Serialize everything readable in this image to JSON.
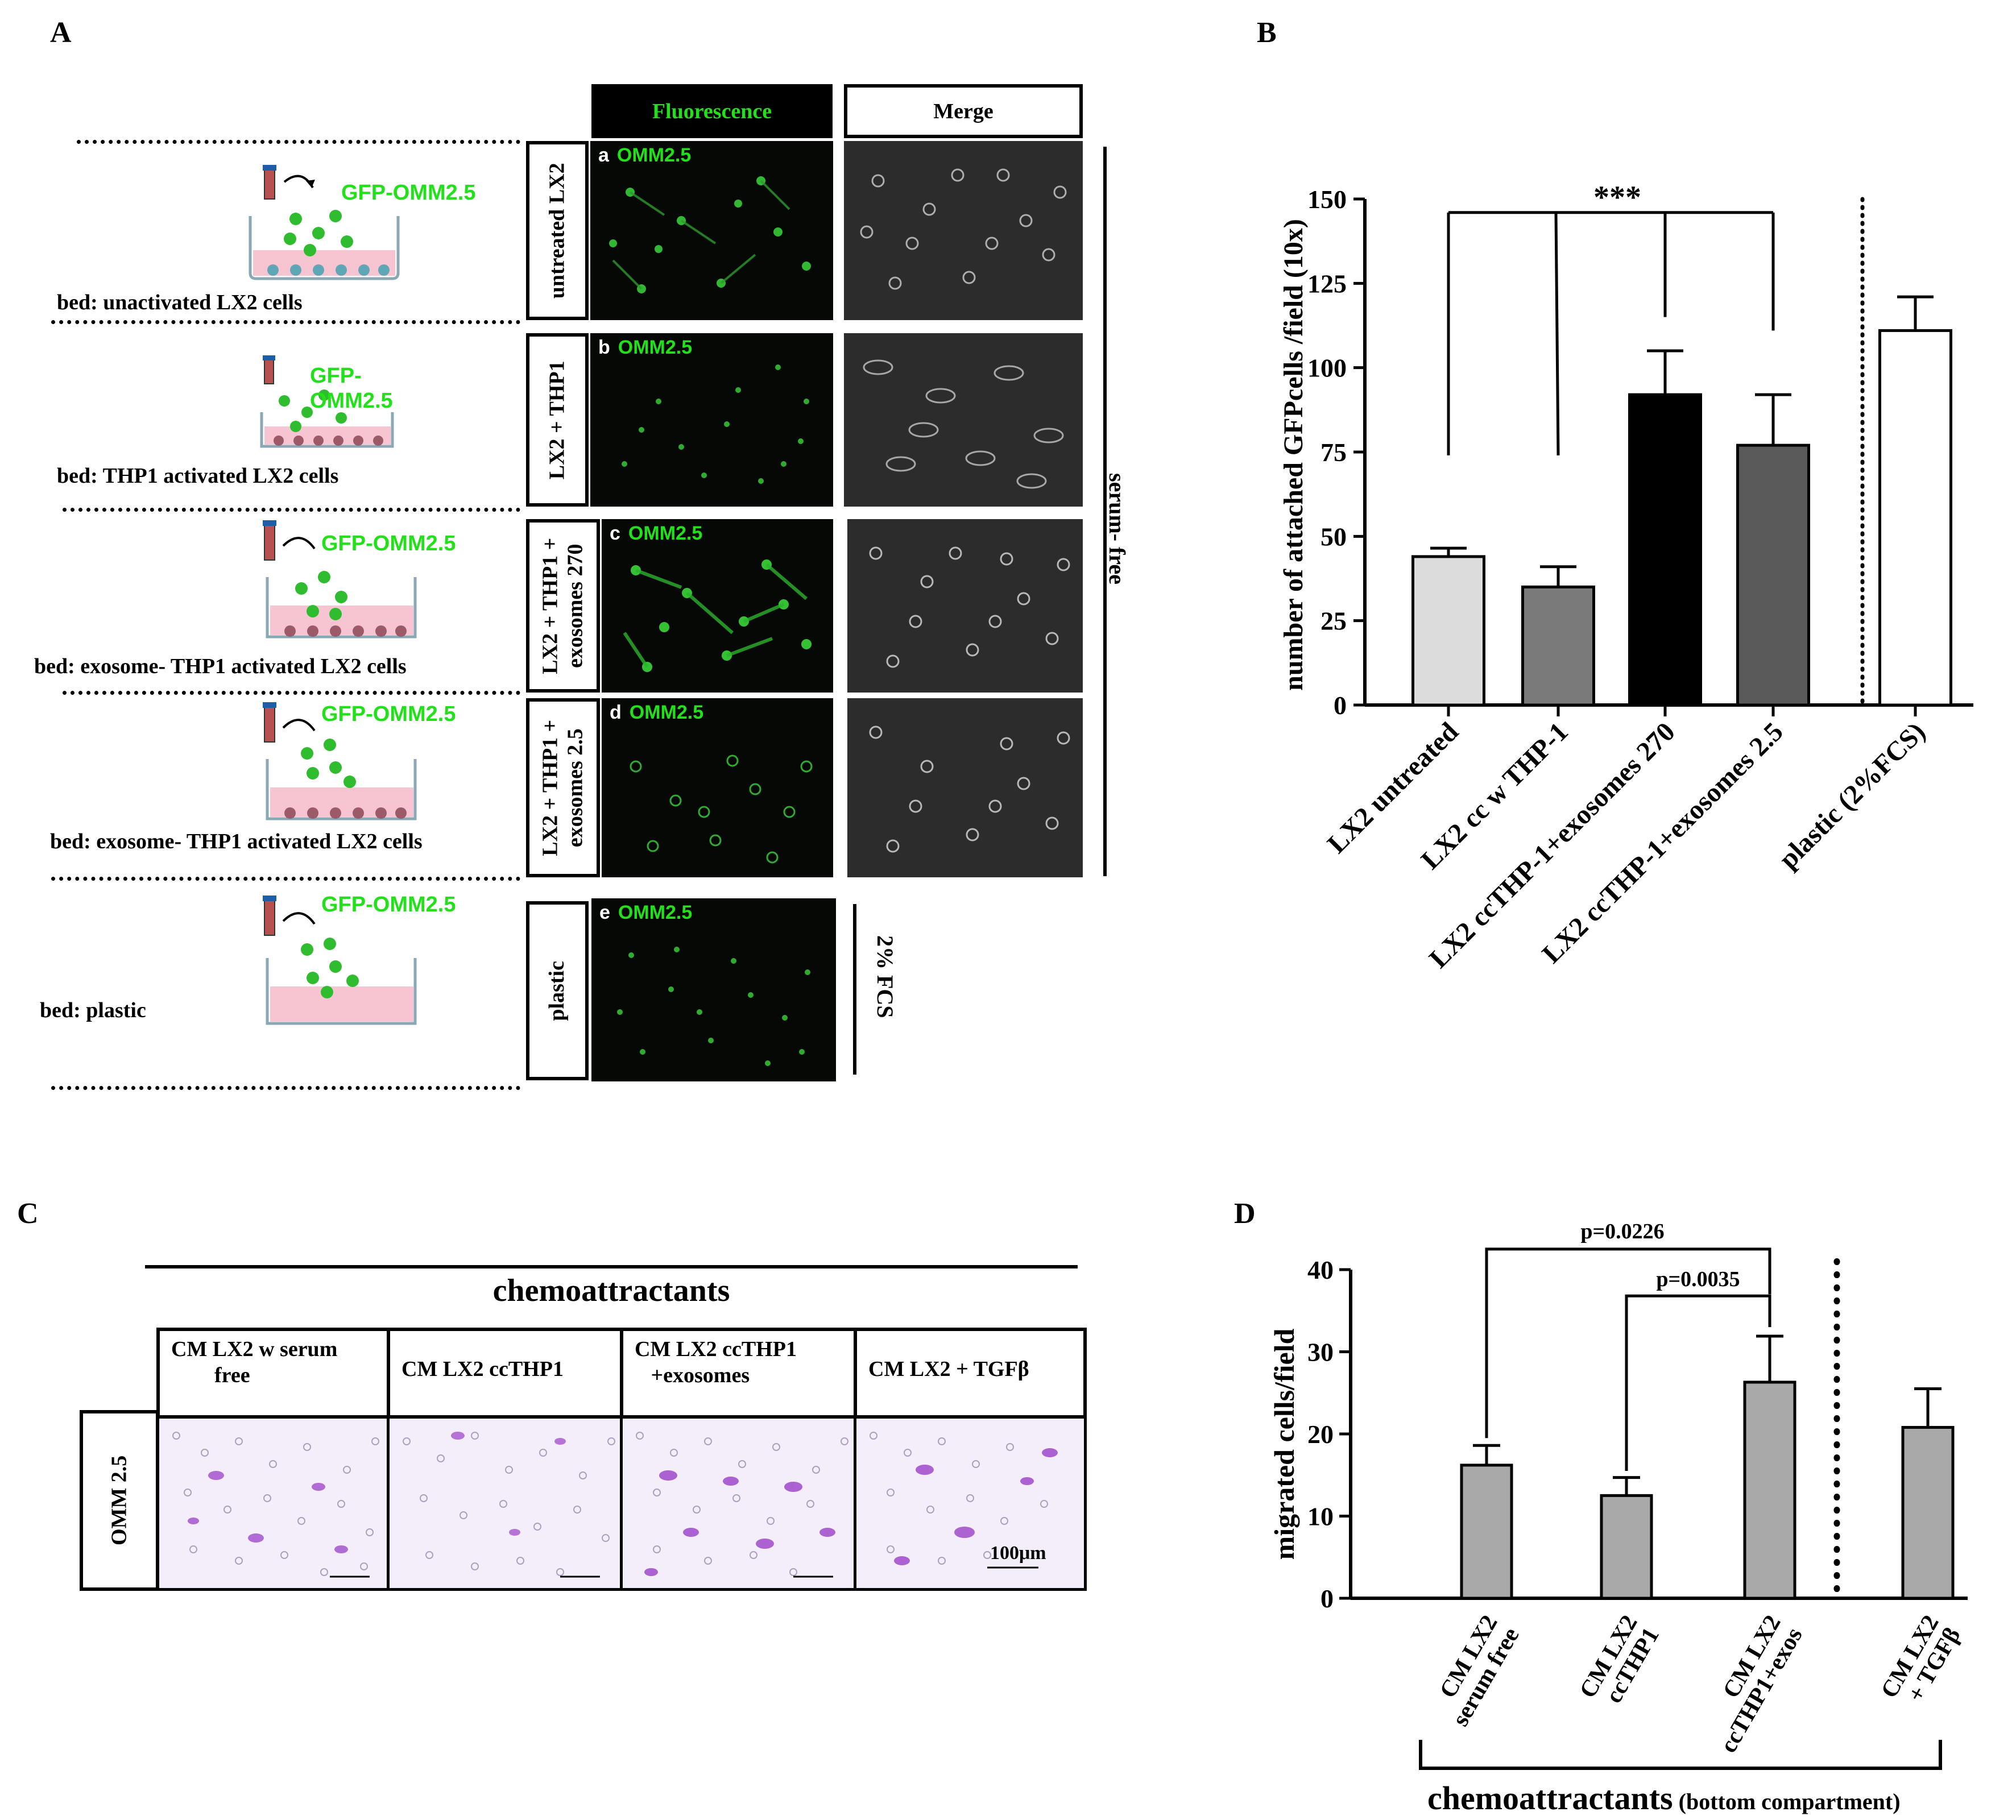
{
  "panels": {
    "A": "A",
    "B": "B",
    "C": "C",
    "D": "D"
  },
  "panel_a": {
    "col_headers": {
      "fluorescence": "Fluorescence",
      "merge": "Merge"
    },
    "rows": [
      {
        "bed": "bed: unactivated LX2 cells",
        "cells_label": "GFP-OMM2.5",
        "condition": "untreated LX2",
        "letter": "a",
        "cell_name": "OMM2.5"
      },
      {
        "bed": "bed: THP1 activated LX2 cells",
        "cells_label": "GFP-\nOMM2.5",
        "condition": "LX2 + THP1",
        "letter": "b",
        "cell_name": "OMM2.5"
      },
      {
        "bed": "bed: exosome- THP1 activated LX2 cells",
        "cells_label": "GFP-OMM2.5",
        "condition": "LX2 + THP1 +\nexosomes 270",
        "letter": "c",
        "cell_name": "OMM2.5"
      },
      {
        "bed": "bed: exosome- THP1 activated LX2 cells",
        "cells_label": "GFP-OMM2.5",
        "condition": "LX2 + THP1 +\nexosomes 2.5",
        "letter": "d",
        "cell_name": "OMM2.5"
      },
      {
        "bed": "bed: plastic",
        "cells_label": "GFP-OMM2.5",
        "condition": "plastic",
        "letter": "e",
        "cell_name": "OMM2.5"
      }
    ],
    "side_labels": {
      "serum_free": "serum- free",
      "fcs": "2% FCS"
    }
  },
  "panel_c": {
    "title": "chemoattractants",
    "columns": [
      "CM LX2 w serum\n        free",
      "CM LX2 ccTHP1",
      "CM LX2 ccTHP1\n   +exosomes",
      "CM LX2 + TGFβ"
    ],
    "row_label": "OMM 2.5",
    "scale_bar": "100μm"
  },
  "chart_data": [
    {
      "type": "bar",
      "panel": "B",
      "categories": [
        "LX2 untreated",
        "LX2 cc w THP-1",
        "LX2 ccTHP-1+exosomes 270",
        "LX2 ccTHP-1+exosomes 2.5",
        "plastic (2%FCS)"
      ],
      "values": [
        44,
        35,
        92,
        77,
        111
      ],
      "errors": [
        2.5,
        6,
        13,
        15,
        10
      ],
      "colors": [
        "#dcdcdc",
        "#7a7a7a",
        "#000000",
        "#5a5a5a",
        "#ffffff"
      ],
      "ylabel": "number of attached GFPcells /field (10x)",
      "ylim": [
        0,
        150
      ],
      "yticks": [
        0,
        25,
        50,
        75,
        100,
        125,
        150
      ],
      "significance": "***"
    },
    {
      "type": "bar",
      "panel": "D",
      "categories": [
        "CM LX2\nserum free",
        "CM LX2\nccTHP1",
        "CM LX2\nccTHP1+exos",
        "CM LX2\n+ TGFβ"
      ],
      "values": [
        16.2,
        12.5,
        26.3,
        20.8
      ],
      "errors": [
        2.4,
        2.2,
        5.6,
        4.7
      ],
      "colors": [
        "#a9a9a9",
        "#a9a9a9",
        "#a9a9a9",
        "#a9a9a9"
      ],
      "ylabel": "migrated cells/field",
      "ylim": [
        0,
        40
      ],
      "yticks": [
        0,
        10,
        20,
        30,
        40
      ],
      "pvalues": [
        "p=0.0226",
        "p=0.0035"
      ],
      "xlabel_main": "chemoattractants",
      "xlabel_sub": " (bottom compartment)"
    }
  ]
}
